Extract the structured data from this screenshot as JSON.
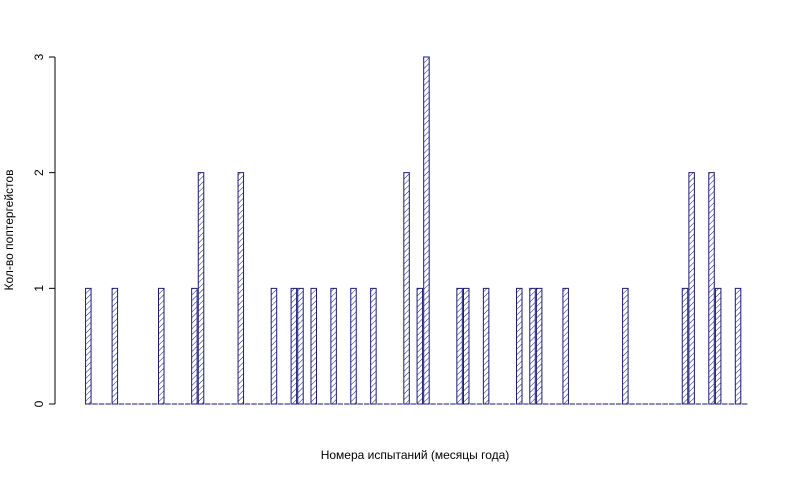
{
  "chart_data": {
    "type": "bar",
    "xlabel": "Номера испытаний (месяцы года)",
    "ylabel": "Кол-во поптергейстов",
    "values": [
      1,
      0,
      0,
      0,
      1,
      0,
      0,
      0,
      0,
      0,
      0,
      1,
      0,
      0,
      0,
      0,
      1,
      2,
      0,
      0,
      0,
      0,
      0,
      2,
      0,
      0,
      0,
      0,
      1,
      0,
      0,
      1,
      1,
      0,
      1,
      0,
      0,
      1,
      0,
      0,
      1,
      0,
      0,
      1,
      0,
      0,
      0,
      0,
      2,
      0,
      1,
      3,
      0,
      0,
      0,
      0,
      1,
      1,
      0,
      0,
      1,
      0,
      0,
      0,
      0,
      1,
      0,
      1,
      1,
      0,
      0,
      0,
      1,
      0,
      0,
      0,
      0,
      0,
      0,
      0,
      0,
      1,
      0,
      0,
      0,
      0,
      0,
      0,
      0,
      0,
      1,
      2,
      0,
      0,
      2,
      1,
      0,
      0,
      1,
      0
    ],
    "color": "#1a1a7a",
    "ylim": [
      0,
      3
    ],
    "yticks": [
      0,
      1,
      2,
      3
    ],
    "grid": false
  }
}
